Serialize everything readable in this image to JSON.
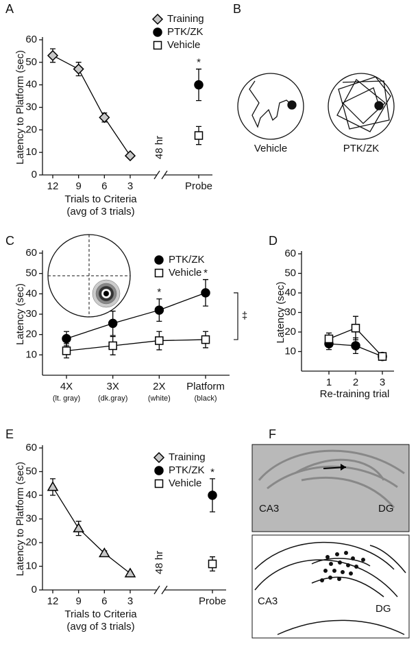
{
  "chart_data": [
    {
      "type": "line",
      "panel": "A",
      "y_label": "Latency to Platform (sec)",
      "x_label": "Trials to Criteria",
      "x_sublabel": "(avg of 3 trials)",
      "categories": [
        "12",
        "9",
        "6",
        "3",
        "Probe"
      ],
      "break_label": "48 hr",
      "star_label": "*",
      "legend": "top",
      "ylim": [
        0,
        60
      ],
      "yticks": [
        0,
        10,
        20,
        30,
        40,
        50,
        60
      ],
      "series": [
        {
          "name": "Training",
          "marker": "diamond",
          "color": "#000",
          "fill": "#c8c8c8",
          "values": [
            53,
            47,
            25.5,
            8.5,
            null
          ],
          "errors": [
            3,
            3,
            2,
            1,
            null
          ],
          "stars": [
            false,
            false,
            false,
            false,
            false
          ]
        },
        {
          "name": "PTK/ZK",
          "marker": "circle",
          "color": "#000",
          "fill": "#000",
          "values": [
            null,
            null,
            null,
            null,
            40
          ],
          "errors": [
            null,
            null,
            null,
            null,
            7
          ],
          "stars": [
            false,
            false,
            false,
            false,
            true
          ]
        },
        {
          "name": "Vehicle",
          "marker": "square",
          "color": "#000",
          "fill": "#fff",
          "values": [
            null,
            null,
            null,
            null,
            17.5
          ],
          "errors": [
            null,
            null,
            null,
            null,
            4
          ],
          "stars": [
            false,
            false,
            false,
            false,
            false
          ]
        }
      ]
    },
    {
      "type": "diagram",
      "panel": "B",
      "labels": [
        "Vehicle",
        "PTK/ZK"
      ]
    },
    {
      "type": "line",
      "panel": "C",
      "y_label": "Latency (sec)",
      "categories": [
        "4X",
        "3X",
        "2X",
        "Platform"
      ],
      "category_notes": [
        "(lt. gray)",
        "(dk.gray)",
        "(white)",
        "(black)"
      ],
      "star_label": "*",
      "bracket_label": "‡",
      "legend": "top-right",
      "ylim": [
        0,
        60
      ],
      "yticks": [
        10,
        20,
        30,
        40,
        50,
        60
      ],
      "series": [
        {
          "name": "PTK/ZK",
          "marker": "circle",
          "color": "#000",
          "fill": "#000",
          "values": [
            18,
            25.5,
            32,
            40.5
          ],
          "errors": [
            3.5,
            6,
            5.5,
            6.5
          ],
          "stars": [
            false,
            false,
            true,
            true
          ]
        },
        {
          "name": "Vehicle",
          "marker": "square",
          "color": "#000",
          "fill": "#fff",
          "values": [
            12,
            14.5,
            17,
            17.5
          ],
          "errors": [
            3.5,
            4.5,
            4.5,
            4
          ],
          "stars": [
            false,
            false,
            false,
            false
          ]
        }
      ]
    },
    {
      "type": "line",
      "panel": "D",
      "y_label": "Latency (sec)",
      "x_label": "Re-training trial",
      "categories": [
        "1",
        "2",
        "3"
      ],
      "ylim": [
        0,
        60
      ],
      "yticks": [
        10,
        20,
        30,
        40,
        50,
        60
      ],
      "series": [
        {
          "marker": "circle",
          "color": "#000",
          "fill": "#000",
          "values": [
            14,
            13,
            7.5
          ],
          "errors": [
            3,
            4,
            1
          ]
        },
        {
          "marker": "square",
          "color": "#000",
          "fill": "#fff",
          "values": [
            16.5,
            22,
            7.5
          ],
          "errors": [
            3,
            6,
            1
          ]
        }
      ]
    },
    {
      "type": "line",
      "panel": "E",
      "y_label": "Latency to Platform (sec)",
      "x_label": "Trials to Criteria",
      "x_sublabel": "(avg of 3 trials)",
      "categories": [
        "12",
        "9",
        "6",
        "3",
        "Probe"
      ],
      "break_label": "48 hr",
      "star_label": "*",
      "legend": "top",
      "ylim": [
        0,
        60
      ],
      "yticks": [
        0,
        10,
        20,
        30,
        40,
        50,
        60
      ],
      "series": [
        {
          "name": "Training",
          "marker": "triangle",
          "legend_marker": "diamond",
          "color": "#000",
          "fill": "#c8c8c8",
          "values": [
            43.5,
            26,
            15.5,
            7,
            null
          ],
          "errors": [
            3.5,
            3,
            1,
            0.5,
            null
          ],
          "stars": [
            false,
            false,
            false,
            false,
            false
          ]
        },
        {
          "name": "PTK/ZK",
          "marker": "circle",
          "color": "#000",
          "fill": "#000",
          "values": [
            null,
            null,
            null,
            null,
            40
          ],
          "errors": [
            null,
            null,
            null,
            null,
            7
          ],
          "stars": [
            false,
            false,
            false,
            false,
            true
          ]
        },
        {
          "name": "Vehicle",
          "marker": "square",
          "color": "#000",
          "fill": "#fff",
          "values": [
            null,
            null,
            null,
            null,
            11
          ],
          "errors": [
            null,
            null,
            null,
            null,
            3
          ],
          "stars": [
            false,
            false,
            false,
            false,
            false
          ]
        }
      ]
    },
    {
      "type": "histology",
      "panel": "F",
      "image_labels": [
        "CA3",
        "DG"
      ],
      "drawing_labels": [
        "CA3",
        "DG"
      ]
    }
  ]
}
